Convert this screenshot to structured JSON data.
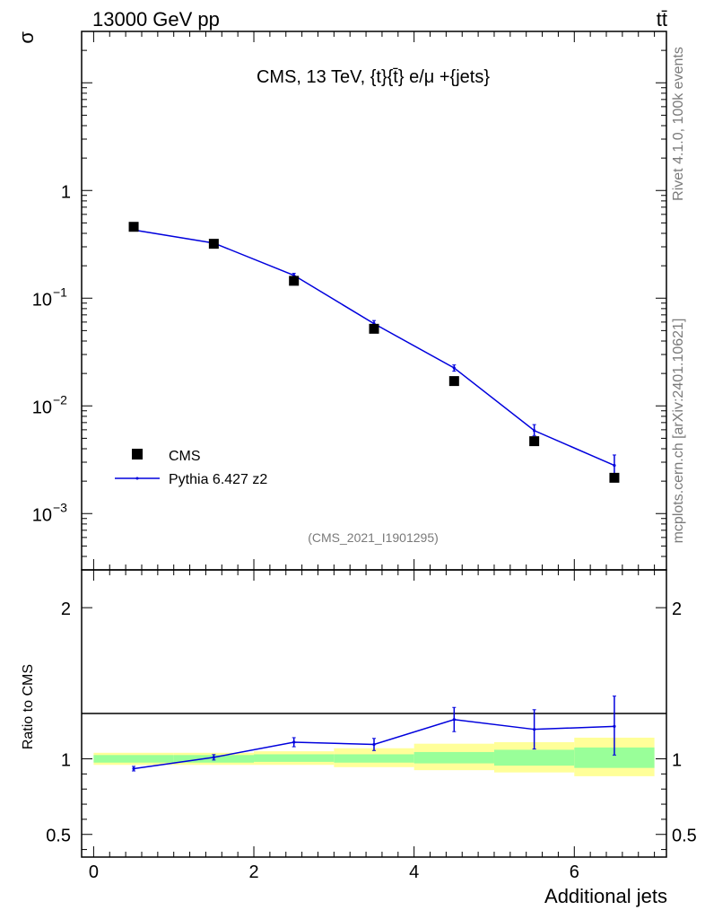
{
  "header": {
    "energy_label": "13000 GeV pp",
    "process_label": "tt̄",
    "analysis_title": "CMS, 13 TeV, {t}{t̄} e/μ +{jets}",
    "analysis_id": "(CMS_2021_I1901295)"
  },
  "side_text": {
    "rivet": "Rivet 4.1.0,  100k events",
    "mcplots": "mcplots.cern.ch [arXiv:2401.10621]"
  },
  "chart_data": [
    {
      "type": "scatter",
      "panel": "main",
      "ylabel": "σ",
      "yscale": "log",
      "xlim": [
        -0.15,
        7.15
      ],
      "ylim": [
        0.0003,
        30
      ],
      "y_tick_labels": [
        {
          "value": 1,
          "text": "1"
        },
        {
          "value": 0.1,
          "mantissa": "10",
          "exponent": "−1"
        },
        {
          "value": 0.01,
          "mantissa": "10",
          "exponent": "−2"
        },
        {
          "value": 0.001,
          "mantissa": "10",
          "exponent": "−3"
        }
      ],
      "legend": {
        "position": "bottom-left",
        "entries": [
          {
            "label": "CMS",
            "marker": "square",
            "color": "#000000"
          },
          {
            "label": "Pythia 6.427 z2",
            "marker": "line",
            "color": "#0000dd"
          }
        ]
      },
      "series": [
        {
          "name": "CMS",
          "x": [
            0.5,
            1.5,
            2.5,
            3.5,
            4.5,
            5.5,
            6.5
          ],
          "y": [
            0.46,
            0.32,
            0.145,
            0.052,
            0.017,
            0.0047,
            0.00215
          ]
        },
        {
          "name": "Pythia 6.427 z2",
          "x": [
            0.5,
            1.5,
            2.5,
            3.5,
            4.5,
            5.5,
            6.5
          ],
          "y": [
            0.43,
            0.325,
            0.163,
            0.058,
            0.0225,
            0.0059,
            0.0028
          ],
          "err_low": [
            0.003,
            0.003,
            0.007,
            0.003,
            0.0015,
            0.0006,
            0.0006
          ],
          "err_high": [
            0.003,
            0.003,
            0.007,
            0.004,
            0.0015,
            0.0008,
            0.0007
          ]
        }
      ]
    },
    {
      "type": "line",
      "panel": "ratio",
      "ylabel": "Ratio to CMS",
      "xlabel": "Additional jets",
      "xlim": [
        -0.15,
        7.15
      ],
      "ylim": [
        0.35,
        2.25
      ],
      "x_ticks": [
        0,
        2,
        4,
        6
      ],
      "y_ticks": [
        0.5,
        1,
        2
      ],
      "bands": [
        {
          "x0": 0,
          "x1": 1,
          "stat_lo": 0.975,
          "stat_hi": 1.025,
          "tot_lo": 0.96,
          "tot_hi": 1.04
        },
        {
          "x0": 1,
          "x1": 2,
          "stat_lo": 0.975,
          "stat_hi": 1.025,
          "tot_lo": 0.96,
          "tot_hi": 1.04
        },
        {
          "x0": 2,
          "x1": 3,
          "stat_lo": 0.98,
          "stat_hi": 1.03,
          "tot_lo": 0.96,
          "tot_hi": 1.05
        },
        {
          "x0": 3,
          "x1": 4,
          "stat_lo": 0.975,
          "stat_hi": 1.03,
          "tot_lo": 0.945,
          "tot_hi": 1.07
        },
        {
          "x0": 4,
          "x1": 5,
          "stat_lo": 0.97,
          "stat_hi": 1.045,
          "tot_lo": 0.925,
          "tot_hi": 1.1
        },
        {
          "x0": 5,
          "x1": 6,
          "stat_lo": 0.955,
          "stat_hi": 1.06,
          "tot_lo": 0.91,
          "tot_hi": 1.11
        },
        {
          "x0": 6,
          "x1": 7,
          "stat_lo": 0.94,
          "stat_hi": 1.075,
          "tot_lo": 0.885,
          "tot_hi": 1.14
        }
      ],
      "series": [
        {
          "name": "Pythia 6.427 z2",
          "color": "#0000dd",
          "x": [
            0.5,
            1.5,
            2.5,
            3.5,
            4.5,
            5.5,
            6.5
          ],
          "y": [
            0.935,
            1.01,
            1.11,
            1.095,
            1.26,
            1.195,
            1.215
          ],
          "err_low": [
            0.015,
            0.018,
            0.03,
            0.04,
            0.08,
            0.13,
            0.19
          ],
          "err_high": [
            0.015,
            0.018,
            0.03,
            0.04,
            0.08,
            0.13,
            0.2
          ]
        }
      ]
    }
  ]
}
